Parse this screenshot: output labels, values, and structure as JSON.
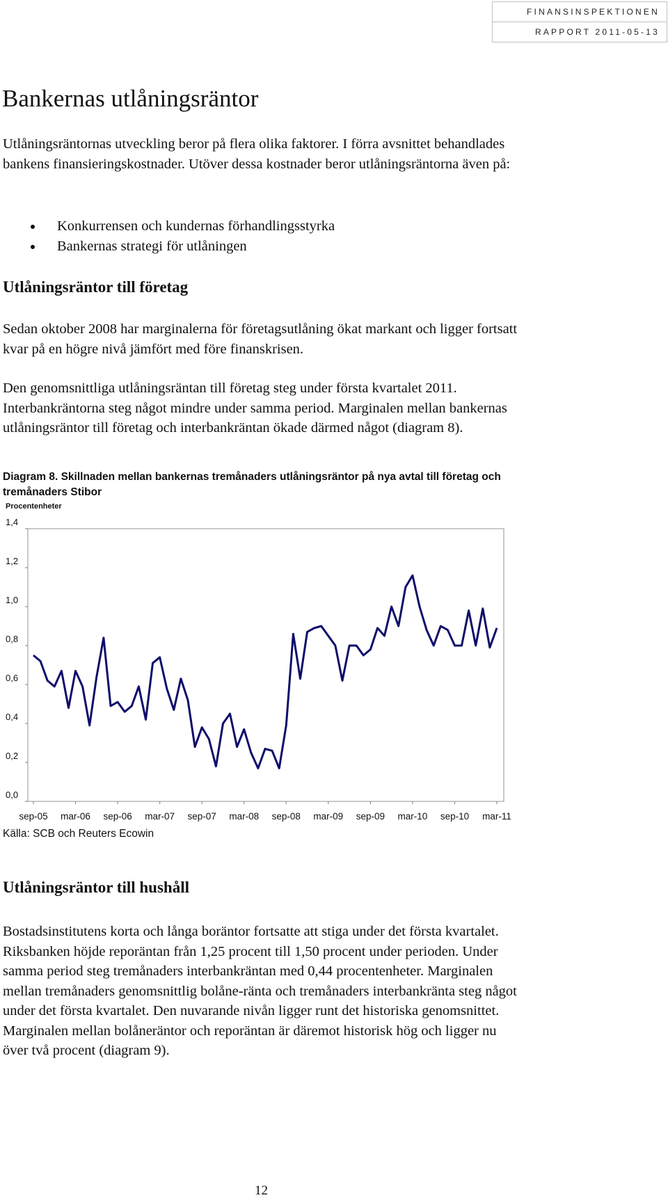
{
  "header": {
    "line1": "FINANSINSPEKTIONEN",
    "line2": "RAPPORT 2011-05-13"
  },
  "title": "Bankernas utlåningsräntor",
  "intro": "Utlåningsräntornas utveckling beror på flera olika faktorer. I förra avsnittet behandlades bankens finansieringskostnader. Utöver dessa kostnader beror utlåningsräntorna även på:",
  "bullets": [
    "Konkurrensen och kundernas förhandlingsstyrka",
    "Bankernas strategi för utlåningen"
  ],
  "section1": {
    "heading": "Utlåningsräntor till företag",
    "p1": "Sedan oktober 2008 har marginalerna för företagsutlåning ökat markant och ligger fortsatt kvar på en högre nivå jämfört med före finanskrisen.",
    "p2": "Den genomsnittliga utlåningsräntan till företag steg under första kvartalet 2011. Interbankräntorna steg något mindre under samma period. Marginalen mellan bankernas utlåningsräntor till företag och interbankräntan ökade därmed något (diagram 8)."
  },
  "diagram": {
    "label": "Diagram 8.",
    "caption": "Skillnaden mellan bankernas tremånaders utlåningsräntor på nya avtal till företag och tremånaders Stibor",
    "unit": "Procentenheter",
    "source": "Källa: SCB och Reuters Ecowin"
  },
  "section2": {
    "heading": "Utlåningsräntor till hushåll",
    "p1": "Bostadsinstitutens korta och långa boräntor fortsatte att stiga under det första kvartalet. Riksbanken höjde reporäntan från 1,25 procent till 1,50 procent under perioden. Under samma period steg tremånaders interbankräntan med 0,44 procentenheter. Marginalen mellan tremånaders genomsnittlig bolåne-ränta och tremånaders interbankränta steg något under det första kvartalet. Den nuvarande nivån ligger runt det historiska genomsnittet. Marginalen mellan bolåneräntor och reporäntan är däremot historisk hög och ligger nu över två procent (diagram 9)."
  },
  "page_number": "12",
  "chart_data": {
    "type": "line",
    "title": "",
    "xlabel": "",
    "ylabel": "Procentenheter",
    "ylim": [
      0,
      1.4
    ],
    "yticks": [
      "0,0",
      "0,2",
      "0,4",
      "0,6",
      "0,8",
      "1,0",
      "1,2",
      "1,4"
    ],
    "xticks": [
      "sep-05",
      "mar-06",
      "sep-06",
      "mar-07",
      "sep-07",
      "mar-08",
      "sep-08",
      "mar-09",
      "sep-09",
      "mar-10",
      "sep-10",
      "mar-11"
    ],
    "grid": false,
    "line_color": "#0d0d6b",
    "series": [
      {
        "values": [
          0.75,
          0.72,
          0.62,
          0.59,
          0.67,
          0.48,
          0.67,
          0.59,
          0.39,
          0.64,
          0.84,
          0.49,
          0.51,
          0.46,
          0.49,
          0.59,
          0.42,
          0.71,
          0.74,
          0.58,
          0.47,
          0.63,
          0.52,
          0.28,
          0.38,
          0.32,
          0.18,
          0.4,
          0.45,
          0.28,
          0.37,
          0.25,
          0.17,
          0.27,
          0.26,
          0.17,
          0.39,
          0.86,
          0.63,
          0.87,
          0.89,
          0.9,
          0.85,
          0.8,
          0.62,
          0.8,
          0.8,
          0.75,
          0.78,
          0.89,
          0.85,
          1.0,
          0.9,
          1.1,
          1.16,
          1.0,
          0.88,
          0.8,
          0.9,
          0.88,
          0.8,
          0.8,
          0.98,
          0.8,
          0.99,
          0.79,
          0.89
        ]
      }
    ]
  }
}
